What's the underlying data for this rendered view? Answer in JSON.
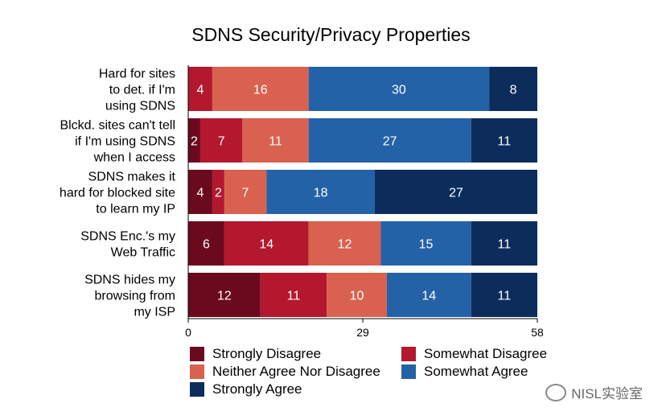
{
  "chart_data": {
    "type": "bar",
    "orientation": "horizontal",
    "stacked": true,
    "title": "SDNS Security/Privacy Properties",
    "categories": [
      "Hard for sites to det. if I'm using SDNS",
      "Blckd. sites can't tell if I'm using SDNS when I access",
      "SDNS makes it hard for blocked site to learn my IP",
      "SDNS Enc.'s my Web Traffic",
      "SDNS hides my browsing from my ISP"
    ],
    "category_lines": [
      [
        "Hard for sites",
        "to det. if I'm",
        "using SDNS"
      ],
      [
        "Blckd. sites can't tell",
        "if I'm using SDNS",
        "when I access"
      ],
      [
        "SDNS makes it",
        "hard for blocked site",
        "to learn my IP"
      ],
      [
        "SDNS Enc.'s my",
        "Web Traffic"
      ],
      [
        "SDNS hides my",
        "browsing from",
        "my ISP"
      ]
    ],
    "series": [
      {
        "name": "Strongly Disagree",
        "color": "#6b0a1e",
        "values": [
          0,
          2,
          4,
          6,
          12
        ]
      },
      {
        "name": "Somewhat Disagree",
        "color": "#b3182f",
        "values": [
          4,
          7,
          2,
          14,
          11
        ]
      },
      {
        "name": "Neither Agree Nor Disagree",
        "color": "#d9614f",
        "values": [
          16,
          11,
          7,
          12,
          10
        ]
      },
      {
        "name": "Somewhat Agree",
        "color": "#2462a8",
        "values": [
          30,
          27,
          18,
          15,
          14
        ]
      },
      {
        "name": "Strongly Agree",
        "color": "#0c2d5c",
        "values": [
          8,
          11,
          27,
          11,
          11
        ]
      }
    ],
    "xlim": [
      0,
      58
    ],
    "xticks": [
      "0",
      "29",
      "58"
    ],
    "legend_position": "bottom"
  },
  "watermark": "NISL实验室"
}
